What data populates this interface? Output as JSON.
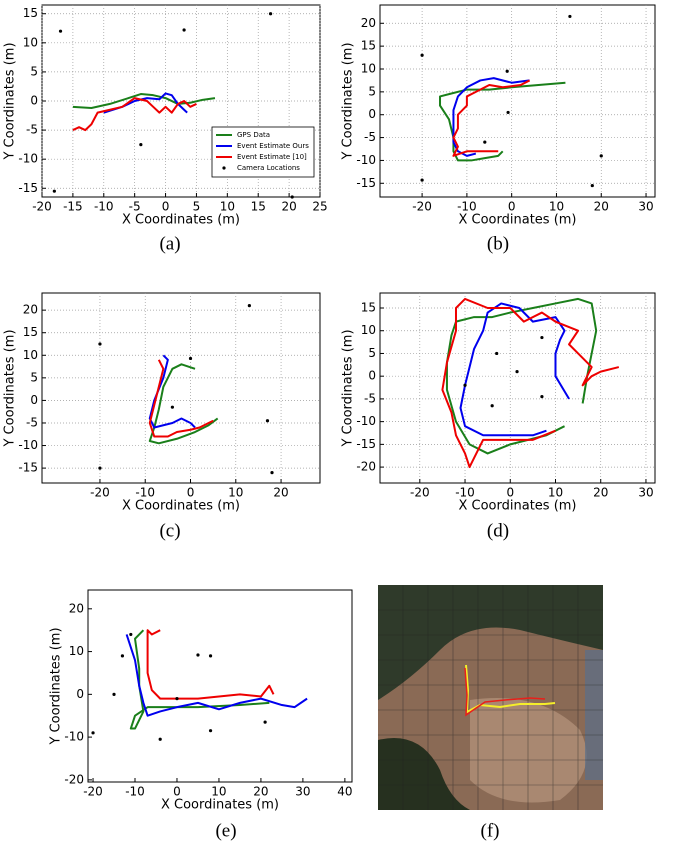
{
  "chart_data": [
    {
      "type": "line",
      "caption": "(a)",
      "xlabel": "X Coordinates (m)",
      "ylabel": "Y Coordinates (m)",
      "xlim": [
        -20,
        25
      ],
      "xticks": [
        -20,
        -15,
        -10,
        -5,
        0,
        5,
        10,
        15,
        20,
        25
      ],
      "ylim": [
        -16.5,
        16.5
      ],
      "yticks": [
        -15,
        -10,
        -5,
        0,
        5,
        10,
        15
      ],
      "grid": true,
      "legend": "lower right",
      "series": [
        {
          "name": "GPS Data",
          "color": "#1a7f1a",
          "x": [
            -15,
            -12,
            -9,
            -6,
            -4,
            -2,
            0,
            2,
            4,
            6,
            8
          ],
          "values": [
            -1,
            -1.2,
            -0.5,
            0.5,
            1.2,
            1,
            0.5,
            -0.5,
            -0.3,
            0.2,
            0.5
          ]
        },
        {
          "name": "Event Estimate Ours",
          "color": "#0000ee",
          "x": [
            -10,
            -7,
            -5,
            -3,
            -1,
            0,
            1,
            2,
            3,
            3.5
          ],
          "values": [
            -2,
            -1,
            0,
            0.5,
            0.3,
            1.3,
            1,
            -0.5,
            -1.5,
            -2
          ]
        },
        {
          "name": "Event Estimate [10]",
          "color": "#ee0000",
          "x": [
            -15,
            -14,
            -13,
            -12,
            -11,
            -9,
            -7,
            -5,
            -3,
            -2,
            -1,
            0,
            1,
            2,
            3,
            4,
            5
          ],
          "values": [
            -5,
            -4.5,
            -5,
            -4,
            -2,
            -1.5,
            -1,
            0.5,
            0,
            -1,
            -2,
            -1,
            -2,
            -0.5,
            0,
            -1,
            -0.5
          ]
        },
        {
          "name": "Camera Locations",
          "type": "scatter",
          "color": "#000000",
          "x": [
            -17,
            3,
            17,
            -4,
            -18,
            20.5
          ],
          "values": [
            12,
            12.2,
            15,
            -7.5,
            -15.5,
            -16.5
          ]
        }
      ]
    },
    {
      "type": "line",
      "caption": "(b)",
      "xlabel": "X Coordinates (m)",
      "ylabel": "Y Coordinates (m)",
      "xlim": [
        -29.4,
        32
      ],
      "xticks": [
        -20,
        -10,
        0,
        10,
        20,
        30
      ],
      "ylim": [
        -18,
        24
      ],
      "yticks": [
        -15,
        -10,
        -5,
        0,
        5,
        10,
        15,
        20
      ],
      "grid": true,
      "series": [
        {
          "color": "#1a7f1a",
          "x": [
            12,
            6,
            0,
            -5,
            -10,
            -14,
            -16,
            -16,
            -14,
            -13,
            -13,
            -12,
            -9,
            -6,
            -3,
            -2
          ],
          "values": [
            7,
            6.5,
            6,
            5.5,
            5.5,
            4.5,
            4,
            2,
            -1,
            -5,
            -8,
            -10,
            -10,
            -9.5,
            -9,
            -8
          ]
        },
        {
          "color": "#0000ee",
          "x": [
            4,
            0,
            -4,
            -7,
            -10,
            -12,
            -13,
            -13,
            -13,
            -12,
            -10,
            -8
          ],
          "values": [
            7.5,
            7,
            8,
            7.5,
            6,
            4,
            1,
            -3,
            -6,
            -8,
            -9,
            -8.5
          ]
        },
        {
          "color": "#ee0000",
          "x": [
            4,
            2,
            -2,
            -5,
            -8,
            -10,
            -10,
            -12,
            -12,
            -13,
            -12,
            -13,
            -10,
            -8,
            -5,
            -3
          ],
          "values": [
            7.5,
            6.5,
            6,
            6.5,
            5,
            4,
            2,
            0,
            -3,
            -5,
            -7,
            -9,
            -8,
            -8,
            -8,
            -8
          ]
        },
        {
          "type": "scatter",
          "color": "#000000",
          "x": [
            -20,
            13,
            -1,
            -0.8,
            -6,
            -20,
            20,
            18
          ],
          "values": [
            13,
            21.5,
            9.5,
            0.5,
            -6,
            -14.3,
            -9,
            -15.5
          ]
        }
      ]
    },
    {
      "type": "line",
      "caption": "(c)",
      "xlabel": "X Coordinates (m)",
      "ylabel": "Y Coordinates (m)",
      "xlim": [
        -32.8,
        28.6
      ],
      "xticks": [
        -20,
        -10,
        0,
        10,
        20
      ],
      "ylim": [
        -18.3,
        23.8
      ],
      "yticks": [
        -15,
        -10,
        -5,
        0,
        5,
        10,
        15,
        20
      ],
      "grid": true,
      "series": [
        {
          "color": "#1a7f1a",
          "x": [
            1,
            -2,
            -4,
            -6,
            -7,
            -8,
            -9,
            -7,
            -3,
            1,
            4,
            6
          ],
          "values": [
            7,
            8,
            7,
            3,
            -2,
            -6,
            -9,
            -9.5,
            -8.5,
            -7,
            -5.5,
            -4
          ]
        },
        {
          "color": "#0000ee",
          "x": [
            -6,
            -5,
            -6,
            -8,
            -9,
            -8,
            -6,
            -4,
            -2,
            0,
            1
          ],
          "values": [
            10,
            9,
            5,
            0,
            -4,
            -6,
            -5.5,
            -5,
            -4,
            -5,
            -6
          ]
        },
        {
          "color": "#ee0000",
          "x": [
            -7,
            -6,
            -7,
            -8,
            -9,
            -8,
            -5,
            -3,
            0,
            2,
            5
          ],
          "values": [
            9,
            7,
            3,
            -1,
            -5,
            -8,
            -8,
            -7,
            -6.5,
            -6,
            -4.5
          ]
        },
        {
          "type": "scatter",
          "color": "#000000",
          "x": [
            -20,
            13,
            0,
            -4,
            17,
            -20,
            18
          ],
          "values": [
            12.5,
            21,
            9.3,
            -1.5,
            -4.5,
            -15,
            -16
          ]
        }
      ]
    },
    {
      "type": "line",
      "caption": "(d)",
      "xlabel": "X Coordinates (m)",
      "ylabel": "Y Coordinates (m)",
      "xlim": [
        -28.8,
        32
      ],
      "xticks": [
        -20,
        -10,
        0,
        10,
        20,
        30
      ],
      "ylim": [
        -23.5,
        18.3
      ],
      "yticks": [
        -20,
        -15,
        -10,
        -5,
        0,
        5,
        10,
        15
      ],
      "grid": true,
      "series": [
        {
          "color": "#1a7f1a",
          "x": [
            12,
            8,
            0,
            -5,
            -9,
            -12,
            -14,
            -14,
            -13,
            -12,
            -8,
            -4,
            0,
            5,
            10,
            15,
            18,
            19,
            17,
            16
          ],
          "values": [
            -11,
            -13,
            -15,
            -17,
            -15,
            -10,
            -3,
            3,
            9,
            12,
            13,
            13,
            14,
            15,
            16,
            17,
            16,
            10,
            0,
            -6
          ]
        },
        {
          "color": "#0000ee",
          "x": [
            13,
            10,
            10,
            11,
            12,
            10,
            5,
            2,
            -2,
            -5,
            -6,
            -8,
            -9,
            -10,
            -11,
            -10,
            -6,
            0,
            5,
            8
          ],
          "values": [
            -5,
            0,
            5,
            8,
            10,
            13,
            12,
            15,
            16,
            14,
            10,
            6,
            2,
            -2,
            -7,
            -11,
            -13,
            -13,
            -13,
            -12
          ]
        },
        {
          "color": "#ee0000",
          "x": [
            24,
            20,
            18,
            16,
            18,
            15,
            13,
            15,
            10,
            7,
            3,
            0,
            -5,
            -10,
            -12,
            -12,
            -14,
            -15,
            -13,
            -12,
            -10,
            -9,
            -6,
            0,
            5,
            10
          ],
          "values": [
            2,
            1,
            0,
            -2,
            2,
            5,
            7,
            10,
            12,
            14,
            12,
            15,
            15,
            17,
            15,
            10,
            3,
            -3,
            -8,
            -13,
            -17,
            -20,
            -14,
            -14,
            -14,
            -12
          ]
        },
        {
          "type": "scatter",
          "color": "#000000",
          "x": [
            -3,
            7,
            1.5,
            -10,
            7,
            -4
          ],
          "values": [
            5,
            8.5,
            1,
            -2,
            -4.5,
            -6.5
          ]
        }
      ]
    },
    {
      "type": "line",
      "caption": "(e)",
      "xlabel": "X Coordinates (m)",
      "ylabel": "Y Coordinates (m)",
      "xlim": [
        -21.2,
        41.7
      ],
      "xticks": [
        -20,
        -10,
        0,
        10,
        20,
        30,
        40
      ],
      "ylim": [
        -20.5,
        24.4
      ],
      "yticks": [
        -20,
        -10,
        0,
        10,
        20
      ],
      "grid": false,
      "series": [
        {
          "color": "#1a7f1a",
          "x": [
            22,
            15,
            5,
            -2,
            -7,
            -10,
            -11,
            -10,
            -8,
            -9,
            -9,
            -10,
            -8
          ],
          "values": [
            -2,
            -2.5,
            -3,
            -3,
            -3,
            -5,
            -8,
            -8,
            -4,
            2,
            6,
            13,
            15
          ]
        },
        {
          "color": "#0000ee",
          "x": [
            31,
            28,
            25,
            20,
            15,
            10,
            5,
            0,
            -4,
            -7,
            -8,
            -9,
            -10,
            -12
          ],
          "values": [
            -1,
            -3,
            -2.5,
            -1,
            -2,
            -3.5,
            -2,
            -3,
            -4,
            -5,
            -2,
            2,
            8,
            14
          ]
        },
        {
          "color": "#ee0000",
          "x": [
            -4,
            -6,
            -7,
            -7,
            -7,
            -6,
            -4,
            0,
            5,
            10,
            15,
            20,
            22,
            23
          ],
          "values": [
            15,
            14,
            15,
            10,
            5,
            1,
            -1,
            -1,
            -1,
            -0.5,
            0,
            -0.5,
            2,
            0
          ]
        },
        {
          "type": "scatter",
          "color": "#000000",
          "x": [
            -11,
            -13,
            5,
            8,
            -15,
            0,
            -4,
            8,
            21,
            -20
          ],
          "values": [
            14,
            9,
            9.2,
            9,
            0,
            -1,
            -10.5,
            -8.5,
            -6.5,
            -9
          ]
        }
      ]
    }
  ],
  "image_panel": {
    "caption": "(f)"
  }
}
